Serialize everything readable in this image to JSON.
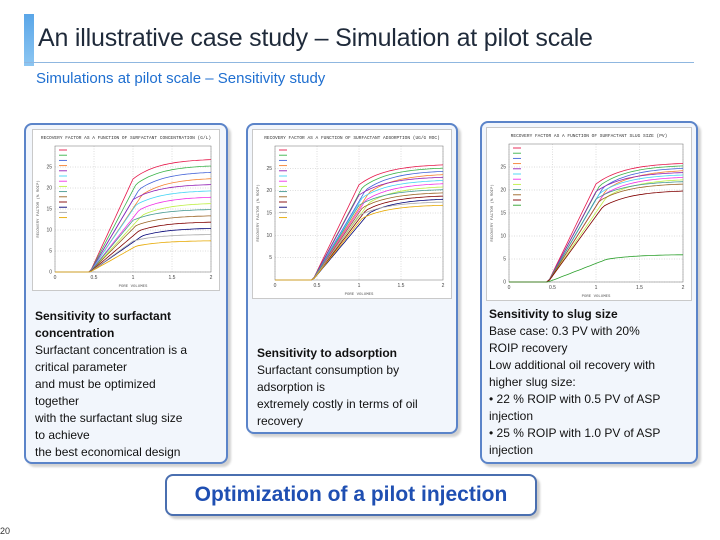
{
  "slide": {
    "title": "An illustrative case study – Simulation at pilot scale",
    "subtitle": "Simulations at pilot scale – Sensitivity study",
    "page_number": "20",
    "bottom_banner": "Optimization of a pilot injection"
  },
  "panels": [
    {
      "heading": "Sensitivity to surfactant concentration",
      "lines": [
        "Surfactant concentration is a",
        "critical parameter",
        "and must be optimized",
        "together",
        "with the surfactant slug size",
        "to achieve",
        "the best economical design"
      ]
    },
    {
      "heading": "Sensitivity to adsorption",
      "lines": [
        "Surfactant consumption by",
        "adsorption is",
        "extremely costly in terms of oil",
        "recovery"
      ]
    },
    {
      "heading": "Sensitivity to slug size",
      "lines": [
        "Base case: 0.3 PV with    20%",
        "ROIP recovery",
        "Low additional oil recovery with",
        "higher slug size:",
        "• 22 % ROIP with 0.5 PV of ASP",
        "injection",
        "• 25 % ROIP with 1.0 PV of ASP",
        "injection"
      ]
    }
  ],
  "chart_data": [
    {
      "type": "line",
      "title": "RECOVERY FACTOR AS A FUNCTION OF SURFACTANT CONCENTRATION (G/L)",
      "xlabel": "PORE VOLUMES",
      "ylabel": "RECOVERY FACTOR (% ROIP)",
      "x_ticks": [
        "0",
        "0.5",
        "1",
        "1.5",
        "2"
      ],
      "y_ticks": [
        "0",
        "5",
        "10",
        "15",
        "20",
        "25"
      ],
      "ylim": [
        0,
        30
      ],
      "xlim": [
        0,
        2
      ],
      "series_count": 14,
      "plateaus": [
        27,
        25.5,
        24,
        22.5,
        21,
        19.5,
        18,
        16.5,
        15,
        13.5,
        12,
        10.5,
        9,
        7.5
      ],
      "colors": [
        "#e6194b",
        "#3cb44b",
        "#4363d8",
        "#f58231",
        "#911eb4",
        "#42d4f4",
        "#f032e6",
        "#bfef45",
        "#469990",
        "#9a6324",
        "#800000",
        "#000075",
        "#a9a9a9",
        "#e6a800"
      ]
    },
    {
      "type": "line",
      "title": "RECOVERY FACTOR AS A FUNCTION OF SURFACTANT ADSORPTION (UG/G ROC)",
      "xlabel": "PORE VOLUMES",
      "ylabel": "RECOVERY FACTOR (% ROIP)",
      "x_ticks": [
        "0",
        "0.5",
        "1",
        "1.5",
        "2"
      ],
      "y_ticks": [
        "5",
        "10",
        "15",
        "20",
        "25"
      ],
      "ylim": [
        0,
        30
      ],
      "xlim": [
        0,
        2
      ],
      "series_count": 14,
      "plateaus": [
        26,
        25.3,
        24.6,
        23.9,
        23.2,
        22.5,
        21.8,
        21.1,
        20.4,
        19.7,
        19,
        18.3,
        17.6,
        16.9
      ],
      "colors": [
        "#e6194b",
        "#3cb44b",
        "#4363d8",
        "#f58231",
        "#911eb4",
        "#42d4f4",
        "#f032e6",
        "#bfef45",
        "#469990",
        "#9a6324",
        "#800000",
        "#000075",
        "#a9a9a9",
        "#e6a800"
      ]
    },
    {
      "type": "line",
      "title": "RECOVERY FACTOR AS A FUNCTION OF SURFACTANT SLUG SIZE (PV)",
      "xlabel": "PORE VOLUMES",
      "ylabel": "RECOVERY FACTOR (% ROIP)",
      "x_ticks": [
        "0",
        "0.5",
        "1",
        "1.5",
        "2"
      ],
      "y_ticks": [
        "0",
        "5",
        "10",
        "15",
        "20",
        "25"
      ],
      "ylim": [
        0,
        30
      ],
      "xlim": [
        0,
        2
      ],
      "series_count": 12,
      "plateaus": [
        26,
        25.5,
        25,
        24.5,
        24,
        23.5,
        23,
        22.5,
        22,
        21.5,
        20,
        6
      ],
      "colors": [
        "#e6194b",
        "#3cb44b",
        "#4363d8",
        "#f58231",
        "#911eb4",
        "#42d4f4",
        "#f032e6",
        "#bfef45",
        "#469990",
        "#9a6324",
        "#800000",
        "#2ca02c"
      ]
    }
  ]
}
